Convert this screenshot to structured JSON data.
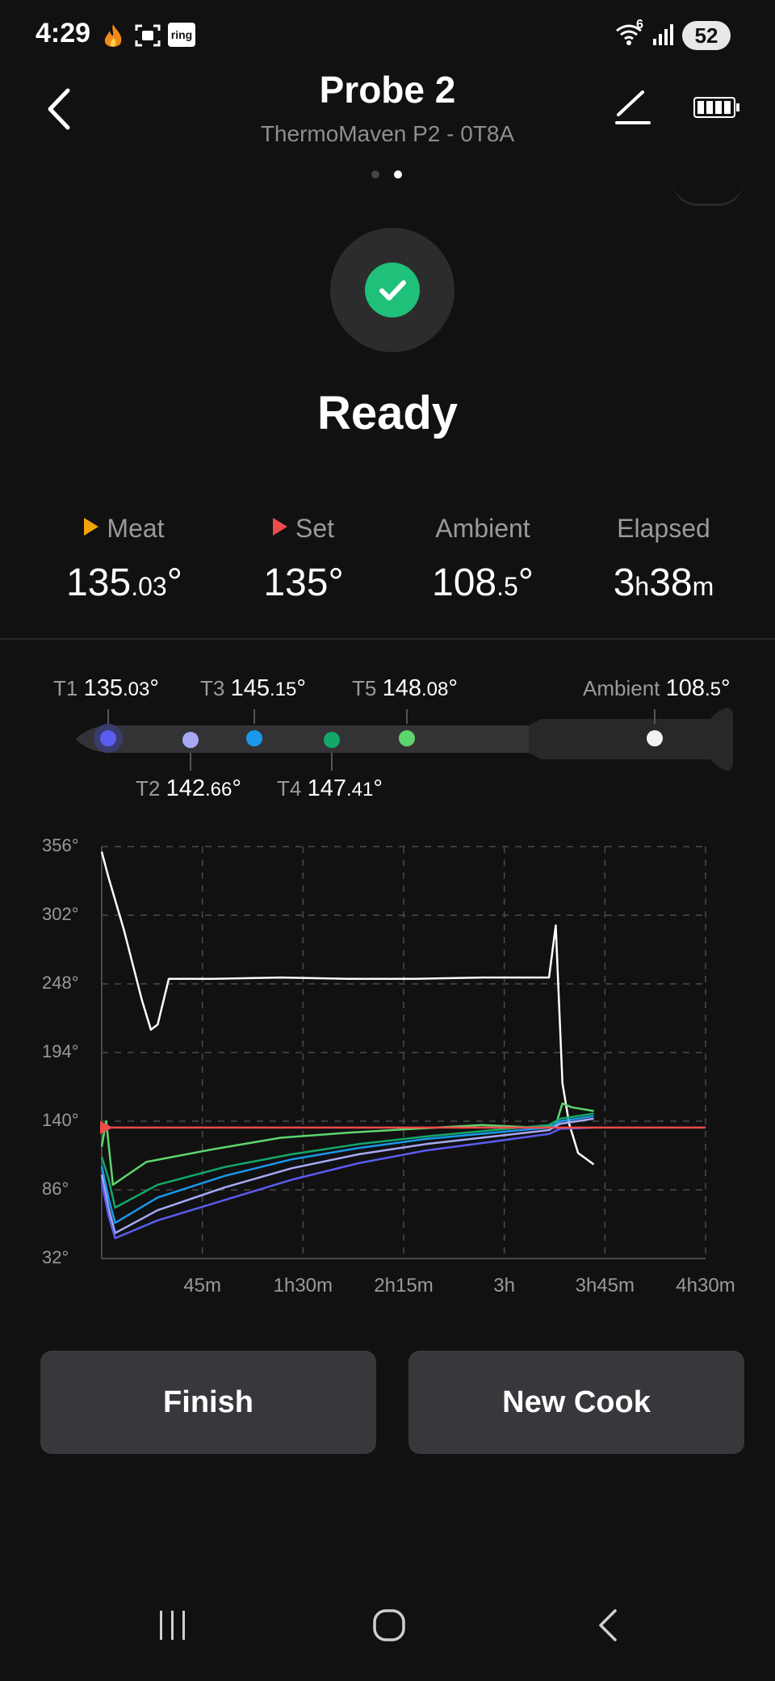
{
  "status_bar": {
    "time": "4:29",
    "battery": "52",
    "icons": [
      "flame-app-icon",
      "screenshot-icon",
      "ring-icon",
      "wifi-icon",
      "signal-icon"
    ],
    "ring_text": "ring",
    "wifi_badge": "6"
  },
  "header": {
    "title": "Probe 2",
    "subtitle": "ThermoMaven P2 - 0T8A",
    "page_count": 2,
    "active_page": 2
  },
  "status": {
    "label": "Ready",
    "color": "#1ec07a"
  },
  "stats": [
    {
      "label": "Meat",
      "main": "135",
      "small": ".03",
      "suffix": "°",
      "marker_color": "#f4a30a"
    },
    {
      "label": "Set",
      "main": "135",
      "small": "",
      "suffix": "°",
      "marker_color": "#ef4b4b"
    },
    {
      "label": "Ambient",
      "main": "108",
      "small": ".5",
      "suffix": "°"
    },
    {
      "label": "Elapsed",
      "main": "3",
      "small": "h",
      "main2": "38",
      "small2": "m"
    }
  ],
  "probe": {
    "sensors": [
      {
        "name": "T1",
        "main": "135",
        "small": ".03",
        "suffix": "°",
        "color": "#5b5cf0"
      },
      {
        "name": "T2",
        "main": "142",
        "small": ".66",
        "suffix": "°",
        "color": "#a7a9f5"
      },
      {
        "name": "T3",
        "main": "145",
        "small": ".15",
        "suffix": "°",
        "color": "#1a98ec"
      },
      {
        "name": "T4",
        "main": "147",
        "small": ".41",
        "suffix": "°",
        "color": "#12a86a"
      },
      {
        "name": "T5",
        "main": "148",
        "small": ".08",
        "suffix": "°",
        "color": "#5ed66e"
      }
    ],
    "ambient": {
      "name": "Ambient",
      "main": "108",
      "small": ".5",
      "suffix": "°",
      "color": "#f2f2f2"
    }
  },
  "chart_data": {
    "type": "line",
    "x_tick_labels": [
      "45m",
      "1h30m",
      "2h15m",
      "3h",
      "3h45m",
      "4h30m"
    ],
    "y_tick_labels": [
      "356°",
      "302°",
      "248°",
      "194°",
      "140°",
      "86°",
      "32°"
    ],
    "xlim": [
      0,
      270
    ],
    "ylim": [
      32,
      356
    ],
    "grid": true,
    "set_temperature": 135,
    "series": [
      {
        "color": "#ffffff",
        "x": [
          0,
          3,
          10,
          18,
          22,
          25,
          30,
          50,
          80,
          110,
          140,
          170,
          200,
          203,
          206,
          209,
          213,
          220
        ],
        "y": [
          352,
          332,
          290,
          235,
          212,
          216,
          252,
          252,
          253,
          252,
          252,
          253,
          253,
          294,
          170,
          138,
          115,
          106
        ]
      },
      {
        "color": "#5ed66e",
        "x": [
          0,
          2,
          5,
          20,
          50,
          80,
          110,
          140,
          170,
          195,
          203,
          206,
          210,
          220
        ],
        "y": [
          120,
          140,
          90,
          108,
          118,
          127,
          131,
          134,
          137,
          135,
          137,
          154,
          151,
          148
        ]
      },
      {
        "color": "#12a86a",
        "x": [
          0,
          3,
          6,
          25,
          55,
          85,
          115,
          145,
          175,
          200,
          205,
          220
        ],
        "y": [
          112,
          95,
          72,
          90,
          104,
          114,
          122,
          128,
          133,
          137,
          142,
          146
        ]
      },
      {
        "color": "#1a98ec",
        "x": [
          0,
          3,
          6,
          25,
          55,
          85,
          115,
          145,
          175,
          200,
          205,
          220
        ],
        "y": [
          105,
          80,
          60,
          80,
          97,
          110,
          119,
          126,
          131,
          135,
          140,
          144
        ]
      },
      {
        "color": "#a7a9f5",
        "x": [
          0,
          3,
          6,
          25,
          55,
          85,
          115,
          145,
          175,
          200,
          205,
          220
        ],
        "y": [
          98,
          72,
          52,
          70,
          88,
          103,
          114,
          122,
          128,
          133,
          138,
          142
        ]
      },
      {
        "color": "#5b5cf0",
        "x": [
          0,
          3,
          6,
          25,
          55,
          85,
          115,
          145,
          175,
          200,
          205,
          220
        ],
        "y": [
          92,
          66,
          48,
          62,
          78,
          94,
          107,
          117,
          124,
          130,
          134,
          135
        ]
      },
      {
        "color": "#ef4b4b",
        "x": [
          0,
          270
        ],
        "y": [
          135,
          135
        ]
      }
    ]
  },
  "actions": {
    "finish": "Finish",
    "new_cook": "New Cook"
  },
  "nav": [
    "recent-apps-button",
    "home-button",
    "back-nav-button"
  ]
}
